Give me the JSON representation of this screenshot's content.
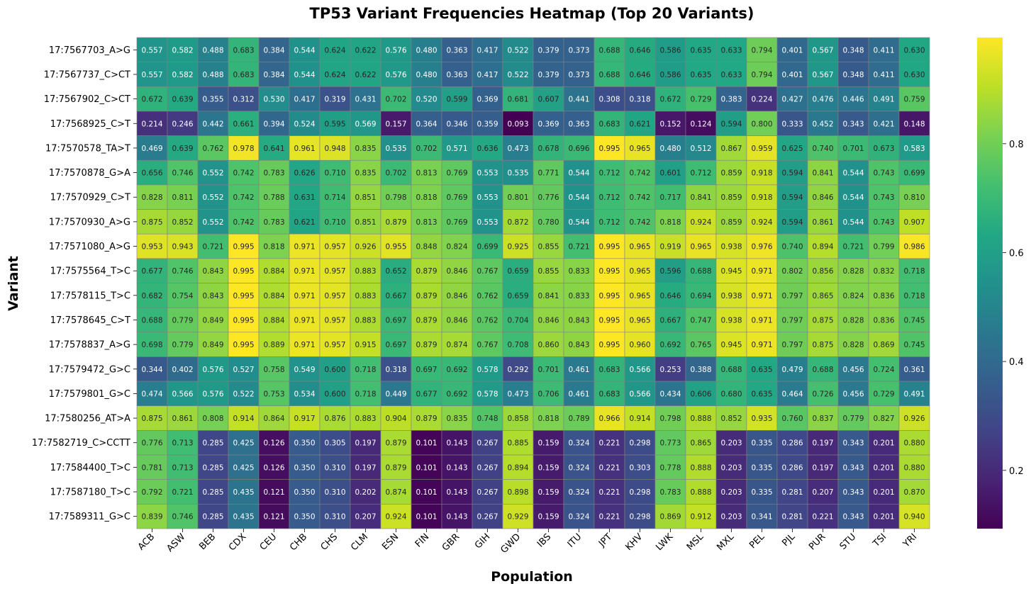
{
  "chart_data": {
    "type": "heatmap",
    "title": "TP53 Variant Frequencies Heatmap (Top 20 Variants)",
    "xlabel": "Population",
    "ylabel": "Variant",
    "colormap": "viridis",
    "value_range": [
      0.093,
      0.995
    ],
    "grid": true,
    "gridline_color": "#808080",
    "colorbar": {
      "ticks": [
        0.2,
        0.4,
        0.6,
        0.8
      ],
      "tick_labels": [
        "0.2",
        "0.4",
        "0.6",
        "0.8"
      ]
    },
    "x": [
      "ACB",
      "ASW",
      "BEB",
      "CDX",
      "CEU",
      "CHB",
      "CHS",
      "CLM",
      "ESN",
      "FIN",
      "GBR",
      "GIH",
      "GWD",
      "IBS",
      "ITU",
      "JPT",
      "KHV",
      "LWK",
      "MSL",
      "MXL",
      "PEL",
      "PJL",
      "PUR",
      "STU",
      "TSI",
      "YRI"
    ],
    "y": [
      "17:7567703_A>G",
      "17:7567737_C>CT",
      "17:7567902_C>CT",
      "17:7568925_C>T",
      "17:7570578_TA>T",
      "17:7570878_G>A",
      "17:7570929_C>T",
      "17:7570930_A>G",
      "17:7571080_A>G",
      "17:7575564_T>C",
      "17:7578115_T>C",
      "17:7578645_C>T",
      "17:7578837_A>G",
      "17:7579472_G>C",
      "17:7579801_G>C",
      "17:7580256_AT>A",
      "17:7582719_C>CCTT",
      "17:7584400_T>C",
      "17:7587180_T>C",
      "17:7589311_G>C"
    ],
    "values": [
      [
        0.557,
        0.582,
        0.488,
        0.683,
        0.384,
        0.544,
        0.624,
        0.622,
        0.576,
        0.48,
        0.363,
        0.417,
        0.522,
        0.379,
        0.373,
        0.688,
        0.646,
        0.586,
        0.635,
        0.633,
        0.794,
        0.401,
        0.567,
        0.348,
        0.411,
        0.63
      ],
      [
        0.557,
        0.582,
        0.488,
        0.683,
        0.384,
        0.544,
        0.624,
        0.622,
        0.576,
        0.48,
        0.363,
        0.417,
        0.522,
        0.379,
        0.373,
        0.688,
        0.646,
        0.586,
        0.635,
        0.633,
        0.794,
        0.401,
        0.567,
        0.348,
        0.411,
        0.63
      ],
      [
        0.672,
        0.639,
        0.355,
        0.312,
        0.53,
        0.417,
        0.319,
        0.431,
        0.702,
        0.52,
        0.599,
        0.369,
        0.681,
        0.607,
        0.441,
        0.308,
        0.318,
        0.672,
        0.729,
        0.383,
        0.224,
        0.427,
        0.476,
        0.446,
        0.491,
        0.759
      ],
      [
        0.214,
        0.246,
        0.442,
        0.661,
        0.394,
        0.524,
        0.595,
        0.569,
        0.157,
        0.364,
        0.346,
        0.359,
        0.093,
        0.369,
        0.363,
        0.683,
        0.621,
        0.152,
        0.124,
        0.594,
        0.8,
        0.333,
        0.452,
        0.343,
        0.421,
        0.148
      ],
      [
        0.469,
        0.639,
        0.762,
        0.978,
        0.641,
        0.961,
        0.948,
        0.835,
        0.535,
        0.702,
        0.571,
        0.636,
        0.473,
        0.678,
        0.696,
        0.995,
        0.965,
        0.48,
        0.512,
        0.867,
        0.959,
        0.625,
        0.74,
        0.701,
        0.673,
        0.583
      ],
      [
        0.656,
        0.746,
        0.552,
        0.742,
        0.783,
        0.626,
        0.71,
        0.835,
        0.702,
        0.813,
        0.769,
        0.553,
        0.535,
        0.771,
        0.544,
        0.712,
        0.742,
        0.601,
        0.712,
        0.859,
        0.918,
        0.594,
        0.841,
        0.544,
        0.743,
        0.699
      ],
      [
        0.828,
        0.811,
        0.552,
        0.742,
        0.788,
        0.631,
        0.714,
        0.851,
        0.798,
        0.818,
        0.769,
        0.553,
        0.801,
        0.776,
        0.544,
        0.712,
        0.742,
        0.717,
        0.841,
        0.859,
        0.918,
        0.594,
        0.846,
        0.544,
        0.743,
        0.81
      ],
      [
        0.875,
        0.852,
        0.552,
        0.742,
        0.783,
        0.621,
        0.71,
        0.851,
        0.879,
        0.813,
        0.769,
        0.553,
        0.872,
        0.78,
        0.544,
        0.712,
        0.742,
        0.818,
        0.924,
        0.859,
        0.924,
        0.594,
        0.861,
        0.544,
        0.743,
        0.907
      ],
      [
        0.953,
        0.943,
        0.721,
        0.995,
        0.818,
        0.971,
        0.957,
        0.926,
        0.955,
        0.848,
        0.824,
        0.699,
        0.925,
        0.855,
        0.721,
        0.995,
        0.965,
        0.919,
        0.965,
        0.938,
        0.976,
        0.74,
        0.894,
        0.721,
        0.799,
        0.986
      ],
      [
        0.677,
        0.746,
        0.843,
        0.995,
        0.884,
        0.971,
        0.957,
        0.883,
        0.652,
        0.879,
        0.846,
        0.767,
        0.659,
        0.855,
        0.833,
        0.995,
        0.965,
        0.596,
        0.688,
        0.945,
        0.971,
        0.802,
        0.856,
        0.828,
        0.832,
        0.718
      ],
      [
        0.682,
        0.754,
        0.843,
        0.995,
        0.884,
        0.971,
        0.957,
        0.883,
        0.667,
        0.879,
        0.846,
        0.762,
        0.659,
        0.841,
        0.833,
        0.995,
        0.965,
        0.646,
        0.694,
        0.938,
        0.971,
        0.797,
        0.865,
        0.824,
        0.836,
        0.718
      ],
      [
        0.688,
        0.779,
        0.849,
        0.995,
        0.884,
        0.971,
        0.957,
        0.883,
        0.697,
        0.879,
        0.846,
        0.762,
        0.704,
        0.846,
        0.843,
        0.995,
        0.965,
        0.667,
        0.747,
        0.938,
        0.971,
        0.797,
        0.875,
        0.828,
        0.836,
        0.745
      ],
      [
        0.698,
        0.779,
        0.849,
        0.995,
        0.889,
        0.971,
        0.957,
        0.915,
        0.697,
        0.879,
        0.874,
        0.767,
        0.708,
        0.86,
        0.843,
        0.995,
        0.96,
        0.692,
        0.765,
        0.945,
        0.971,
        0.797,
        0.875,
        0.828,
        0.869,
        0.745
      ],
      [
        0.344,
        0.402,
        0.576,
        0.527,
        0.758,
        0.549,
        0.6,
        0.718,
        0.318,
        0.697,
        0.692,
        0.578,
        0.292,
        0.701,
        0.461,
        0.683,
        0.566,
        0.253,
        0.388,
        0.688,
        0.635,
        0.479,
        0.688,
        0.456,
        0.724,
        0.361
      ],
      [
        0.474,
        0.566,
        0.576,
        0.522,
        0.753,
        0.534,
        0.6,
        0.718,
        0.449,
        0.677,
        0.692,
        0.578,
        0.473,
        0.706,
        0.461,
        0.683,
        0.566,
        0.434,
        0.606,
        0.68,
        0.635,
        0.464,
        0.726,
        0.456,
        0.729,
        0.491
      ],
      [
        0.875,
        0.861,
        0.808,
        0.914,
        0.864,
        0.917,
        0.876,
        0.883,
        0.904,
        0.879,
        0.835,
        0.748,
        0.858,
        0.818,
        0.789,
        0.966,
        0.914,
        0.798,
        0.888,
        0.852,
        0.935,
        0.76,
        0.837,
        0.779,
        0.827,
        0.926
      ],
      [
        0.776,
        0.713,
        0.285,
        0.425,
        0.126,
        0.35,
        0.305,
        0.197,
        0.879,
        0.101,
        0.143,
        0.267,
        0.885,
        0.159,
        0.324,
        0.221,
        0.298,
        0.773,
        0.865,
        0.203,
        0.335,
        0.286,
        0.197,
        0.343,
        0.201,
        0.88
      ],
      [
        0.781,
        0.713,
        0.285,
        0.425,
        0.126,
        0.35,
        0.31,
        0.197,
        0.879,
        0.101,
        0.143,
        0.267,
        0.894,
        0.159,
        0.324,
        0.221,
        0.303,
        0.778,
        0.888,
        0.203,
        0.335,
        0.286,
        0.197,
        0.343,
        0.201,
        0.88
      ],
      [
        0.792,
        0.721,
        0.285,
        0.435,
        0.121,
        0.35,
        0.31,
        0.202,
        0.874,
        0.101,
        0.143,
        0.267,
        0.898,
        0.159,
        0.324,
        0.221,
        0.298,
        0.783,
        0.888,
        0.203,
        0.335,
        0.281,
        0.207,
        0.343,
        0.201,
        0.87
      ],
      [
        0.839,
        0.746,
        0.285,
        0.435,
        0.121,
        0.35,
        0.31,
        0.207,
        0.924,
        0.101,
        0.143,
        0.267,
        0.929,
        0.159,
        0.324,
        0.221,
        0.298,
        0.869,
        0.912,
        0.203,
        0.341,
        0.281,
        0.221,
        0.343,
        0.201,
        0.94
      ]
    ]
  }
}
